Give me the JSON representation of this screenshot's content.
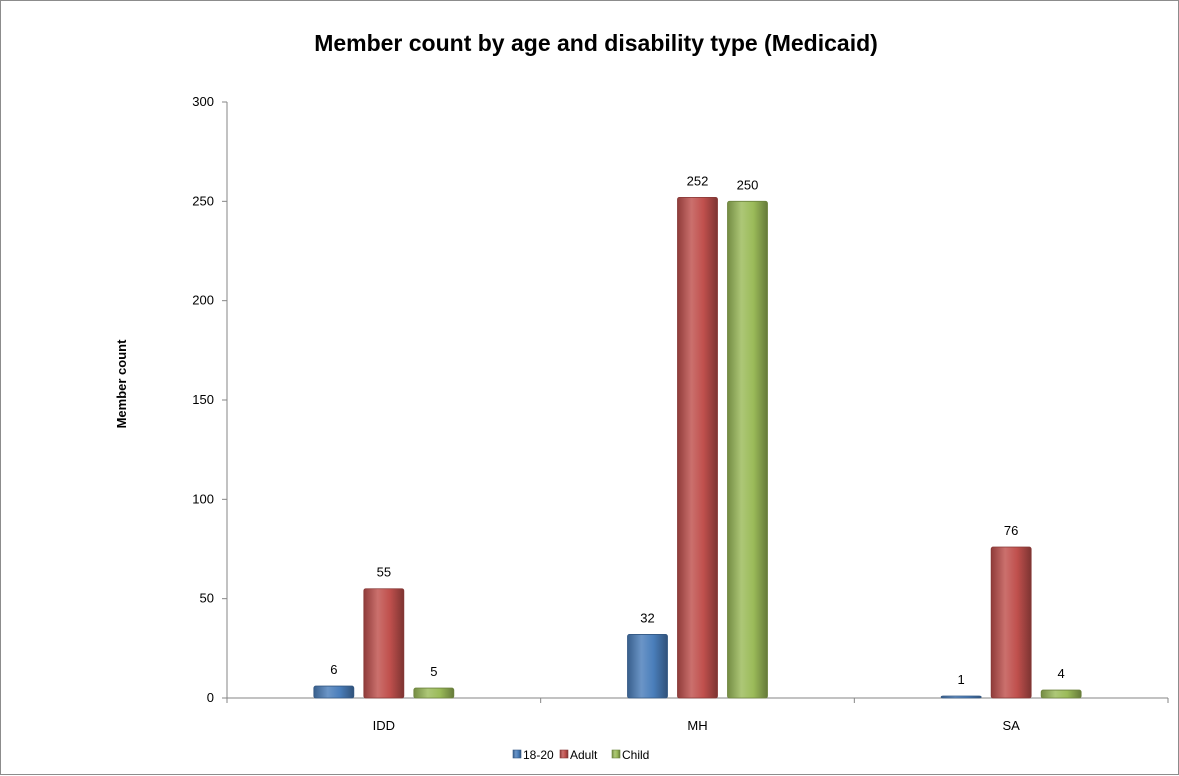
{
  "chart_data": {
    "type": "bar",
    "title": "Member count by age and disability type (Medicaid)",
    "xlabel": "",
    "ylabel": "Member count",
    "categories": [
      "IDD",
      "MH",
      "SA"
    ],
    "series": [
      {
        "name": "18-20",
        "values": [
          6,
          32,
          1
        ],
        "color": "#4a7ebb"
      },
      {
        "name": "Adult",
        "values": [
          55,
          252,
          76
        ],
        "color": "#c0504d"
      },
      {
        "name": "Child",
        "values": [
          5,
          250,
          4
        ],
        "color": "#9bbb59"
      }
    ],
    "ylim": [
      0,
      300
    ],
    "yticks": [
      0,
      50,
      100,
      150,
      200,
      250,
      300
    ],
    "grid": false,
    "legend_position": "bottom"
  }
}
